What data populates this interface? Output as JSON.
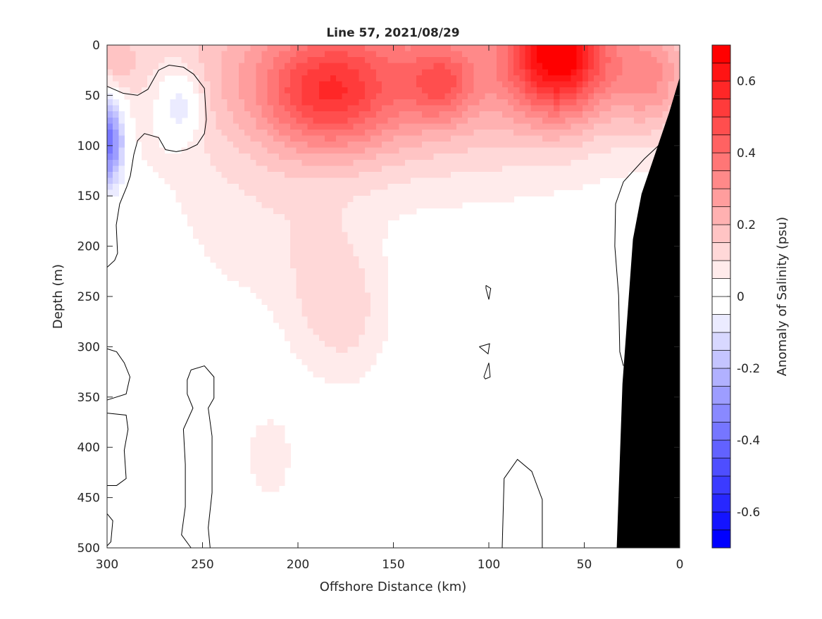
{
  "chart_data": {
    "type": "heatmap",
    "title": "Line 57, 2021/08/29",
    "xlabel": "Offshore Distance (km)",
    "ylabel": "Depth (m)",
    "colorbar_label": "Anomaly of Salinity (psu)",
    "xlim": [
      300,
      0
    ],
    "ylim": [
      0,
      500
    ],
    "xticks": [
      "300",
      "250",
      "200",
      "150",
      "100",
      "50",
      "0"
    ],
    "xtick_values": [
      300,
      250,
      200,
      150,
      100,
      50,
      0
    ],
    "yticks": [
      "0",
      "50",
      "100",
      "150",
      "200",
      "250",
      "300",
      "350",
      "400",
      "450",
      "500"
    ],
    "ytick_values": [
      0,
      50,
      100,
      150,
      200,
      250,
      300,
      350,
      400,
      450,
      500
    ],
    "clim": [
      -0.7,
      0.7
    ],
    "contour_step": 0.05,
    "cticks": [
      "-0.6",
      "-0.4",
      "-0.2",
      "0",
      "0.2",
      "0.4",
      "0.6"
    ],
    "ctick_values": [
      -0.6,
      -0.4,
      -0.2,
      0,
      0.2,
      0.4,
      0.6
    ],
    "colors": {
      "positive": "#ff0000",
      "negative": "#0000ff",
      "zero": "#ffffff",
      "bathymetry": "#000000"
    },
    "anomaly_features": [
      {
        "distance_km": 63,
        "depth_m": 5,
        "anomaly": 0.55,
        "spread_km": 18,
        "spread_m": 45
      },
      {
        "distance_km": 185,
        "depth_m": 50,
        "anomaly": 0.3,
        "spread_km": 25,
        "spread_m": 40
      },
      {
        "distance_km": 125,
        "depth_m": 40,
        "anomaly": 0.2,
        "spread_km": 12,
        "spread_m": 25
      },
      {
        "distance_km": 150,
        "depth_m": 20,
        "anomaly": 0.3,
        "spread_km": 90,
        "spread_m": 75
      },
      {
        "distance_km": 15,
        "depth_m": 30,
        "anomaly": 0.22,
        "spread_km": 15,
        "spread_m": 40
      },
      {
        "distance_km": 295,
        "depth_m": 15,
        "anomaly": 0.12,
        "spread_km": 8,
        "spread_m": 20
      },
      {
        "distance_km": 300,
        "depth_m": 95,
        "anomaly": -0.45,
        "spread_km": 6,
        "spread_m": 30
      },
      {
        "distance_km": 262,
        "depth_m": 60,
        "anomaly": -0.2,
        "spread_km": 8,
        "spread_m": 25
      },
      {
        "distance_km": 185,
        "depth_m": 250,
        "anomaly": 0.09,
        "spread_km": 18,
        "spread_m": 60
      },
      {
        "distance_km": 225,
        "depth_m": 190,
        "anomaly": 0.06,
        "spread_km": 30,
        "spread_m": 60
      },
      {
        "distance_km": 215,
        "depth_m": 410,
        "anomaly": 0.08,
        "spread_km": 10,
        "spread_m": 35
      },
      {
        "distance_km": 170,
        "depth_m": 270,
        "anomaly": 0.06,
        "spread_km": 15,
        "spread_m": 50
      }
    ],
    "zero_contours": [
      [
        [
          300,
          41
        ],
        [
          291.5,
          48
        ],
        [
          284,
          50
        ],
        [
          278.6,
          44
        ],
        [
          273,
          25
        ],
        [
          267.5,
          20
        ],
        [
          260,
          22
        ],
        [
          254.6,
          29
        ],
        [
          249,
          43
        ],
        [
          248,
          74
        ],
        [
          249,
          88
        ],
        [
          252.8,
          99
        ],
        [
          258.3,
          104
        ],
        [
          263.8,
          106
        ],
        [
          269.4,
          104
        ],
        [
          273,
          92
        ],
        [
          280.4,
          88
        ],
        [
          284,
          95
        ],
        [
          286,
          109
        ],
        [
          287.8,
          130
        ],
        [
          289.7,
          141
        ],
        [
          293.4,
          158
        ],
        [
          295.2,
          179
        ],
        [
          294.5,
          207
        ],
        [
          296,
          214
        ],
        [
          300,
          221
        ]
      ],
      [
        [
          300,
          302
        ],
        [
          295,
          305
        ],
        [
          291,
          316
        ],
        [
          288,
          330
        ],
        [
          290,
          347
        ],
        [
          300,
          353
        ]
      ],
      [
        [
          300,
          366
        ],
        [
          290,
          368
        ],
        [
          289,
          382
        ],
        [
          291,
          403
        ],
        [
          290,
          431
        ],
        [
          295,
          438
        ],
        [
          300,
          438
        ]
      ],
      [
        [
          300,
          466
        ],
        [
          297,
          473
        ],
        [
          298,
          494
        ],
        [
          300,
          498
        ]
      ],
      [
        [
          256,
          500
        ],
        [
          261,
          487
        ],
        [
          259,
          459
        ],
        [
          259,
          417
        ],
        [
          260,
          382
        ],
        [
          255,
          361
        ],
        [
          258,
          347
        ],
        [
          258,
          333
        ],
        [
          256,
          323
        ],
        [
          249,
          319
        ],
        [
          244,
          330
        ],
        [
          244,
          351
        ],
        [
          247,
          361
        ],
        [
          245,
          389
        ],
        [
          245,
          445
        ],
        [
          247,
          480
        ],
        [
          246,
          500
        ]
      ],
      [
        [
          93,
          500
        ],
        [
          92,
          431
        ],
        [
          85,
          412
        ],
        [
          77.5,
          424
        ],
        [
          72,
          452
        ],
        [
          72,
          500
        ]
      ],
      [
        [
          101.5,
          239
        ],
        [
          99,
          242
        ],
        [
          100,
          253
        ],
        [
          101.5,
          242
        ],
        [
          101.5,
          239
        ]
      ],
      [
        [
          105,
          300
        ],
        [
          99.6,
          297
        ],
        [
          100.4,
          307
        ],
        [
          105,
          300
        ]
      ],
      [
        [
          102.6,
          330
        ],
        [
          100,
          316
        ],
        [
          99.3,
          330
        ],
        [
          101.8,
          332
        ],
        [
          102.6,
          330
        ]
      ],
      [
        [
          2.6,
          85
        ],
        [
          18.5,
          113
        ],
        [
          29.5,
          136
        ],
        [
          33.6,
          158
        ],
        [
          34,
          200
        ],
        [
          32,
          249
        ],
        [
          31.4,
          305
        ],
        [
          29.5,
          319
        ]
      ]
    ],
    "bathymetry": [
      [
        0,
        32
      ],
      [
        5.5,
        67
      ],
      [
        20,
        148
      ],
      [
        24.5,
        193
      ],
      [
        30,
        337
      ],
      [
        33,
        500
      ],
      [
        0,
        500
      ]
    ]
  }
}
